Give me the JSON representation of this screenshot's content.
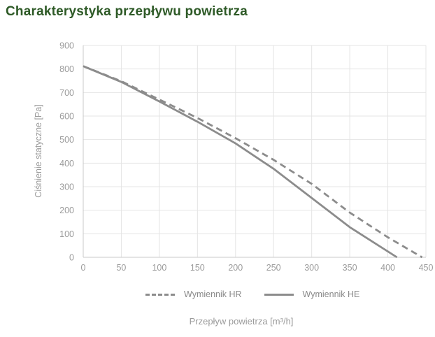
{
  "chart_data": {
    "type": "line",
    "title": "Charakterystyka przepływu powietrza",
    "xlabel": "Przepływ powietrza [m³/h]",
    "ylabel": "Ciśnienie statyczne [Pa]",
    "xlim": [
      0,
      450
    ],
    "ylim": [
      0,
      900
    ],
    "x_ticks": [
      0,
      50,
      100,
      150,
      200,
      250,
      300,
      350,
      400,
      450
    ],
    "y_ticks": [
      0,
      100,
      200,
      300,
      400,
      500,
      600,
      700,
      800,
      900
    ],
    "grid": true,
    "legend_position": "bottom",
    "series": [
      {
        "name": "Wymiennik HR",
        "style": "dashed",
        "x": [
          0,
          50,
          100,
          150,
          200,
          250,
          300,
          350,
          400,
          445
        ],
        "y": [
          812,
          748,
          670,
          592,
          506,
          414,
          312,
          190,
          85,
          0
        ]
      },
      {
        "name": "Wymiennik HE",
        "style": "solid",
        "x": [
          0,
          50,
          100,
          150,
          200,
          250,
          300,
          350,
          412
        ],
        "y": [
          812,
          745,
          662,
          576,
          484,
          376,
          252,
          128,
          0
        ]
      }
    ],
    "colors": {
      "title": "#2e5a27",
      "line": "#8c8c8c",
      "grid": "#e4e4e4",
      "axis": "#c9c9c9",
      "tick_text": "#9b9b9b",
      "axis_title_text": "#9b9b9b",
      "legend_text": "#8a8a8a",
      "background": "#ffffff"
    }
  }
}
